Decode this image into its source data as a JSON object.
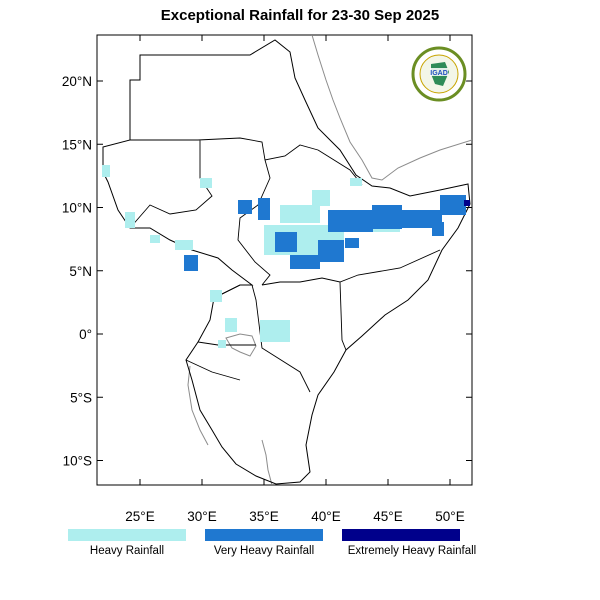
{
  "title": "Exceptional Rainfall for 23-30 Sep 2025",
  "colors": {
    "heavy": "#aeeeee",
    "very_heavy": "#1f78d0",
    "extremely_heavy": "#00008b",
    "boundary": "#000000",
    "coast_grey": "#8c8c8c"
  },
  "y_ticks": [
    {
      "lat": 20,
      "label": "20°N"
    },
    {
      "lat": 15,
      "label": "15°N"
    },
    {
      "lat": 10,
      "label": "10°N"
    },
    {
      "lat": 5,
      "label": "5°N"
    },
    {
      "lat": 0,
      "label": "0°"
    },
    {
      "lat": -5,
      "label": "5°S"
    },
    {
      "lat": -10,
      "label": "10°S"
    }
  ],
  "x_ticks": [
    {
      "lon": 25,
      "label": "25°E"
    },
    {
      "lon": 30,
      "label": "30°E"
    },
    {
      "lon": 35,
      "label": "35°E"
    },
    {
      "lon": 40,
      "label": "40°E"
    },
    {
      "lon": 45,
      "label": "45°E"
    },
    {
      "lon": 50,
      "label": "50°E"
    }
  ],
  "legend": [
    {
      "label": "Heavy Rainfall",
      "color": "#aeeeee"
    },
    {
      "label": "Very Heavy Rainfall",
      "color": "#1f78d0"
    },
    {
      "label": "Extremely Heavy Rainfall",
      "color": "#00008b"
    }
  ],
  "logo": {
    "text": "IGAD",
    "icon": "igad-logo-icon"
  }
}
